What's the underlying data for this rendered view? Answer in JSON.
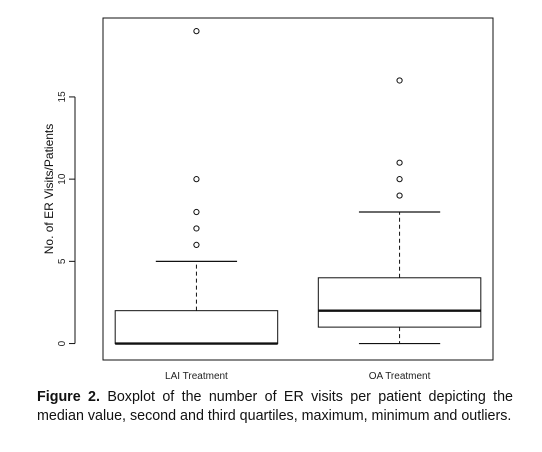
{
  "chart_data": {
    "type": "boxplot",
    "title": "",
    "xlabel": "",
    "ylabel": "No. of ER Visits/Patients",
    "ylim": [
      -1,
      19.8
    ],
    "yticks": [
      0,
      5,
      10,
      15
    ],
    "grid": false,
    "legend": "none",
    "categories": [
      "LAI Treatment",
      "OA Treatment"
    ],
    "boxes": [
      {
        "category": "LAI Treatment",
        "whisker_low": 0,
        "q1": 0,
        "median": 0,
        "q3": 2,
        "whisker_high": 5,
        "outliers": [
          6,
          7,
          8,
          10,
          19
        ]
      },
      {
        "category": "OA Treatment",
        "whisker_low": 0,
        "q1": 1,
        "median": 2,
        "q3": 4,
        "whisker_high": 8,
        "outliers": [
          9,
          10,
          11,
          16
        ]
      }
    ],
    "colors": {
      "box_fill": "#ffffff",
      "stroke": "#111111"
    }
  },
  "caption": {
    "label": "Figure 2.",
    "text": " Boxplot of the number of ER visits per patient depicting the median value, second and third quartiles, maximum, minimum and outliers."
  }
}
